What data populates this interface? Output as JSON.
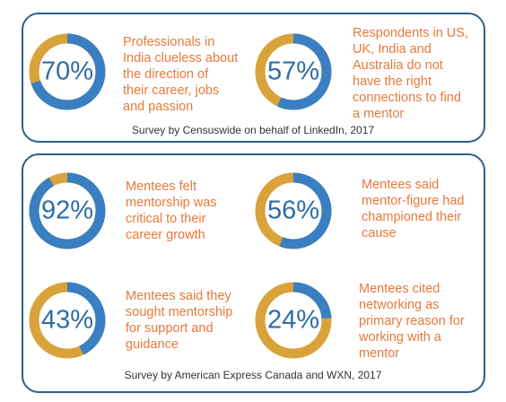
{
  "panels": [
    {
      "source": "Survey by Censuswide on behalf of LinkedIn, 2017",
      "stats": [
        {
          "value": 70,
          "value_label": "70%",
          "lines": [
            "Professionals in",
            "India clueless about",
            "the direction of",
            "their career, jobs",
            "and passion"
          ]
        },
        {
          "value": 57,
          "value_label": "57%",
          "lines": [
            "Respondents in US,",
            "UK, India and",
            "Australia do not",
            "have the right",
            "connections to find",
            "a mentor"
          ]
        }
      ]
    },
    {
      "source": "Survey by American Express Canada and WXN, 2017",
      "stats": [
        {
          "value": 92,
          "value_label": "92%",
          "lines": [
            "Mentees felt",
            "mentorship was",
            "critical to their",
            "career growth"
          ]
        },
        {
          "value": 56,
          "value_label": "56%",
          "lines": [
            "Mentees said",
            "mentor-figure had",
            "championed their",
            "cause"
          ]
        },
        {
          "value": 43,
          "value_label": "43%",
          "lines": [
            "Mentees said they",
            "sought mentorship",
            "for support and",
            "guidance"
          ]
        },
        {
          "value": 24,
          "value_label": "24%",
          "lines": [
            "Mentees cited",
            "networking as",
            "primary reason for",
            "working with a",
            "mentor"
          ]
        }
      ]
    }
  ]
}
